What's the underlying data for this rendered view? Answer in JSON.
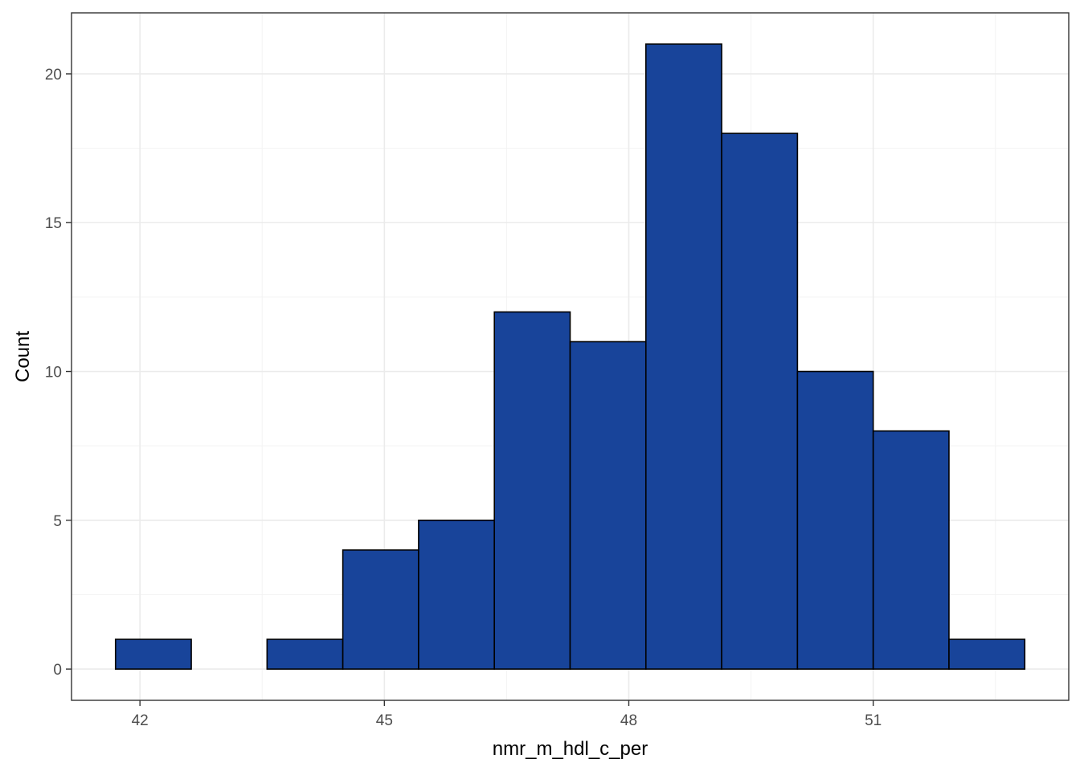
{
  "chart_data": {
    "type": "bar",
    "subtype": "histogram",
    "title": "",
    "xlabel": "nmr_m_hdl_c_per",
    "ylabel": "Count",
    "bins": [
      {
        "x_min": 41.7,
        "x_max": 42.63,
        "count": 1
      },
      {
        "x_min": 42.63,
        "x_max": 43.56,
        "count": 0
      },
      {
        "x_min": 43.56,
        "x_max": 44.49,
        "count": 1
      },
      {
        "x_min": 44.49,
        "x_max": 45.42,
        "count": 4
      },
      {
        "x_min": 45.42,
        "x_max": 46.35,
        "count": 5
      },
      {
        "x_min": 46.35,
        "x_max": 47.28,
        "count": 12
      },
      {
        "x_min": 47.28,
        "x_max": 48.21,
        "count": 11
      },
      {
        "x_min": 48.21,
        "x_max": 49.14,
        "count": 21
      },
      {
        "x_min": 49.14,
        "x_max": 50.07,
        "count": 18
      },
      {
        "x_min": 50.07,
        "x_max": 51.0,
        "count": 10
      },
      {
        "x_min": 51.0,
        "x_max": 51.93,
        "count": 8
      },
      {
        "x_min": 51.93,
        "x_max": 52.86,
        "count": 1
      }
    ],
    "x_ticks": [
      42,
      45,
      48,
      51
    ],
    "x_tick_labels": [
      "42",
      "45",
      "48",
      "51"
    ],
    "y_ticks": [
      0,
      5,
      10,
      15,
      20
    ],
    "y_tick_labels": [
      "0",
      "5",
      "10",
      "15",
      "20"
    ],
    "xlim": [
      41.16,
      53.4
    ],
    "ylim": [
      -1.05,
      22.05
    ],
    "grid": true,
    "legend": "none",
    "colors": {
      "bar_fill": "#18449A",
      "bar_outline": "#000000",
      "panel_background": "#FFFFFF",
      "grid": "#EBEBEB"
    }
  }
}
